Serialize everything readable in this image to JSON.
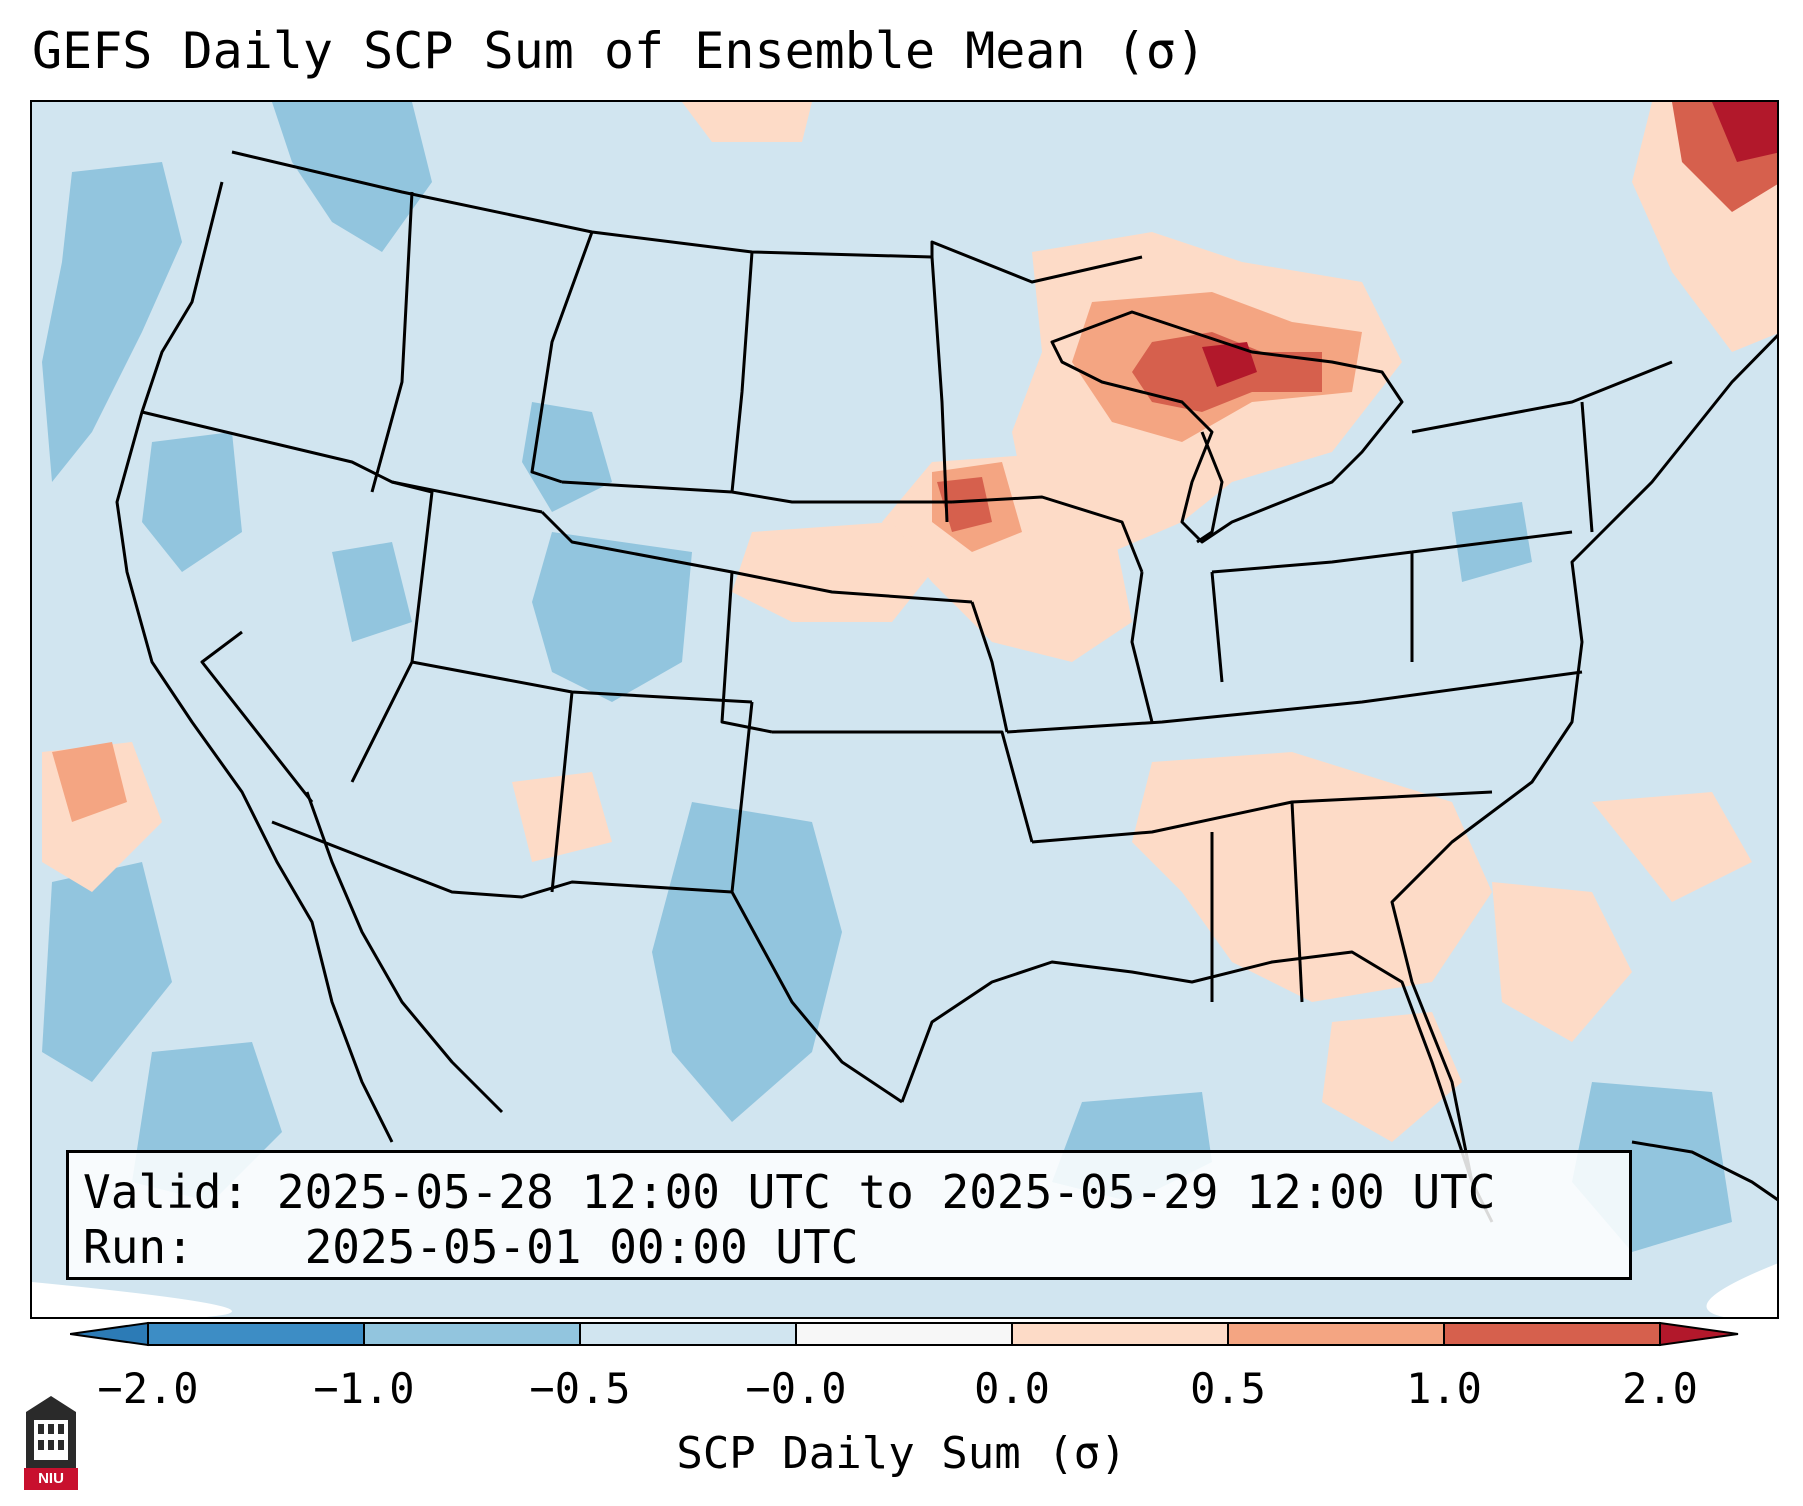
{
  "title": "GEFS Daily SCP Sum of Ensemble Mean (σ)",
  "info": {
    "valid_label": "Valid:",
    "valid_value": "2025-05-28 12:00 UTC to 2025-05-29 12:00 UTC",
    "run_label": "Run:",
    "run_value": "2025-05-01 00:00 UTC"
  },
  "colorbar": {
    "label": "SCP Daily Sum (σ)",
    "ticks": [
      "−2.0",
      "−1.0",
      "−0.5",
      "−0.0",
      "0.0",
      "0.5",
      "1.0",
      "2.0"
    ],
    "bins": [
      {
        "range": "< -2.0",
        "color": "#2c7bb6"
      },
      {
        "range": "-2.0 to -1.0",
        "color": "#3d8dc5"
      },
      {
        "range": "-1.0 to -0.5",
        "color": "#92c5de"
      },
      {
        "range": "-0.5 to -0.0",
        "color": "#d1e5f0"
      },
      {
        "range": "-0.0 to 0.0",
        "color": "#f7f7f7"
      },
      {
        "range": "0.0 to 0.5",
        "color": "#fddbc7"
      },
      {
        "range": "0.5 to 1.0",
        "color": "#f4a582"
      },
      {
        "range": "1.0 to 2.0",
        "color": "#d6604d"
      },
      {
        "range": "> 2.0",
        "color": "#b2182b"
      }
    ]
  },
  "map": {
    "background_color": "#d1e5f0",
    "features": [
      "coastlines",
      "state-borders",
      "country-borders"
    ],
    "highlight_regions": [
      {
        "name": "Great Lakes",
        "level": "1.0 to 2.0"
      },
      {
        "name": "Iowa",
        "level": "1.0 to 2.0"
      },
      {
        "name": "Southeast US",
        "level": "0.0 to 0.5"
      },
      {
        "name": "Northeast Canada",
        "level": "> 2.0"
      }
    ]
  },
  "logo": {
    "text": "NIU"
  }
}
